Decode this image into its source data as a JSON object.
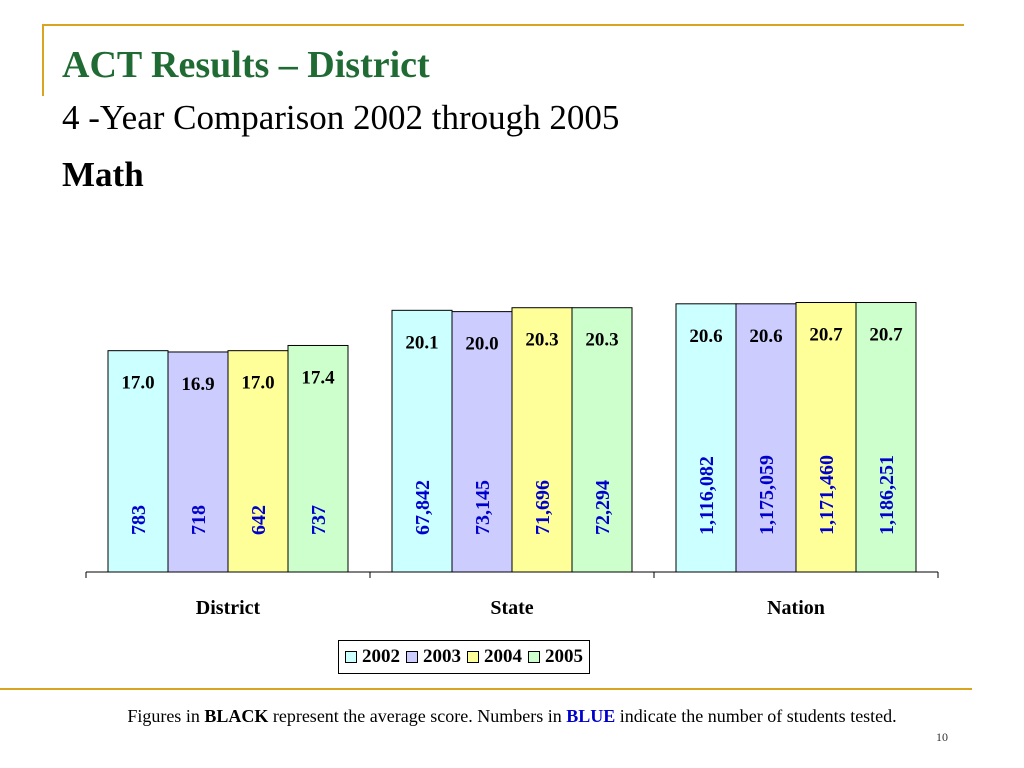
{
  "slide": {
    "title": "ACT Results – District",
    "subtitle": "4 -Year Comparison 2002 through 2005",
    "subject": "Math",
    "footnote": {
      "part1": "Figures in ",
      "black": "BLACK",
      "part2": " represent the average score.  Numbers in ",
      "blue": "BLUE",
      "part3": " indicate the number of students tested."
    },
    "page_number": "10"
  },
  "colors": {
    "accent": "#d9a520",
    "title": "#1f6b33",
    "count_text": "#0000cc",
    "score_text": "#000000"
  },
  "chart_data": {
    "type": "bar",
    "categories": [
      "District",
      "State",
      "Nation"
    ],
    "series": [
      {
        "name": "2002",
        "color": "#ccffff",
        "values": [
          17.0,
          20.1,
          20.6
        ],
        "value_labels": [
          "17.0",
          "20.1",
          "20.6"
        ],
        "counts": [
          "783",
          "67,842",
          "1,116,082"
        ]
      },
      {
        "name": "2003",
        "color": "#ccccff",
        "values": [
          16.9,
          20.0,
          20.6
        ],
        "value_labels": [
          "16.9",
          "20.0",
          "20.6"
        ],
        "counts": [
          "718",
          "73,145",
          "1,175,059"
        ]
      },
      {
        "name": "2004",
        "color": "#ffff99",
        "values": [
          17.0,
          20.3,
          20.7
        ],
        "value_labels": [
          "17.0",
          "20.3",
          "20.7"
        ],
        "counts": [
          "642",
          "71,696",
          "1,171,460"
        ]
      },
      {
        "name": "2005",
        "color": "#ccffcc",
        "values": [
          17.4,
          20.3,
          20.7
        ],
        "value_labels": [
          "17.4",
          "20.3",
          "20.7"
        ],
        "counts": [
          "737",
          "72,294",
          "1,186,251"
        ]
      }
    ],
    "title": "",
    "xlabel": "",
    "ylabel": "",
    "ylim": [
      0,
      21.2
    ],
    "grid": false,
    "legend": "bottom"
  }
}
